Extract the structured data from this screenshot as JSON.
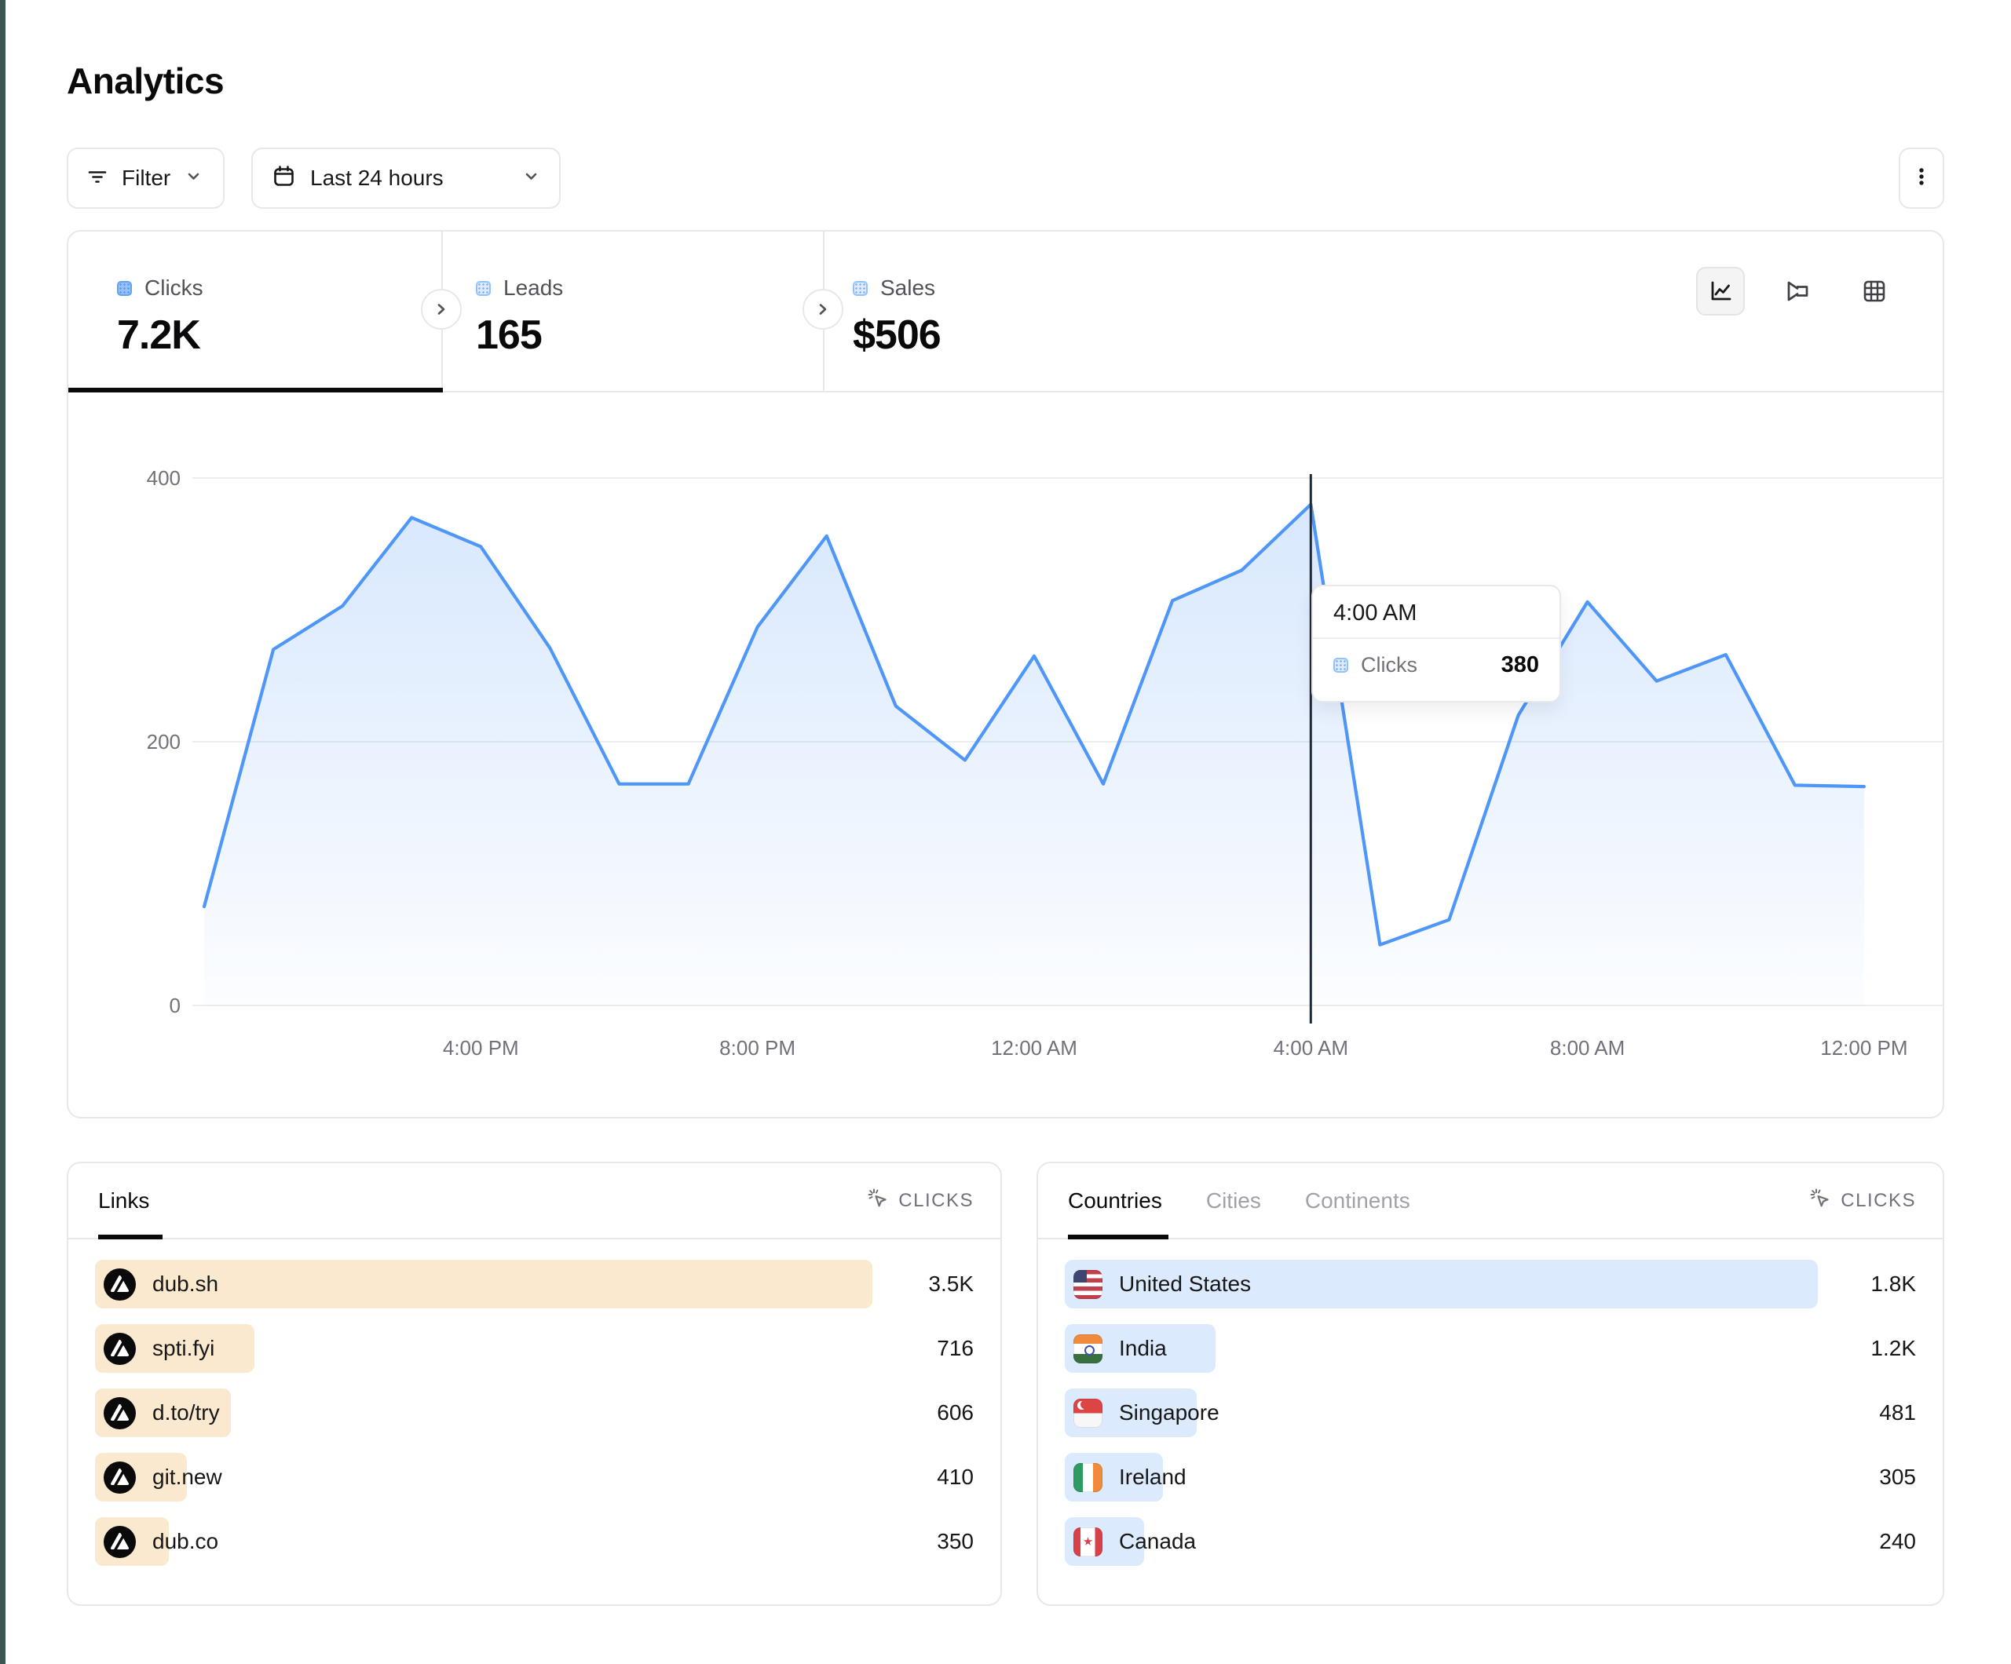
{
  "page": {
    "title": "Analytics"
  },
  "toolbar": {
    "filter_label": "Filter",
    "date_range_label": "Last 24 hours"
  },
  "metrics": [
    {
      "label": "Clicks",
      "value": "7.2K",
      "active": true
    },
    {
      "label": "Leads",
      "value": "165",
      "active": false
    },
    {
      "label": "Sales",
      "value": "$506",
      "active": false
    }
  ],
  "chart_data": {
    "type": "area",
    "x": [
      "12:00 PM",
      "1:00 PM",
      "2:00 PM",
      "3:00 PM",
      "4:00 PM",
      "5:00 PM",
      "6:00 PM",
      "7:00 PM",
      "8:00 PM",
      "9:00 PM",
      "10:00 PM",
      "11:00 PM",
      "12:00 AM",
      "1:00 AM",
      "2:00 AM",
      "3:00 AM",
      "4:00 AM",
      "5:00 AM",
      "6:00 AM",
      "7:00 AM",
      "8:00 AM",
      "9:00 AM",
      "10:00 AM",
      "11:00 AM",
      "12:00 PM"
    ],
    "series": [
      {
        "name": "Clicks",
        "values": [
          75,
          270,
          303,
          370,
          348,
          271,
          168,
          168,
          287,
          356,
          227,
          186,
          265,
          168,
          307,
          330,
          380,
          46,
          65,
          220,
          306,
          246,
          266,
          167,
          166
        ]
      }
    ],
    "x_tick_labels": [
      "4:00 PM",
      "8:00 PM",
      "12:00 AM",
      "4:00 AM",
      "8:00 AM",
      "12:00 PM"
    ],
    "x_tick_indices": [
      4,
      8,
      12,
      16,
      20,
      24
    ],
    "y_ticks": [
      0,
      200,
      400
    ],
    "ylim": [
      0,
      400
    ],
    "grid": "horizontal",
    "legend_position": "none",
    "line_color": "#4e96f7",
    "hover": {
      "index": 16,
      "label": "4:00 AM",
      "series": "Clicks",
      "value": 380
    }
  },
  "tooltip": {
    "title": "4:00 AM",
    "series_label": "Clicks",
    "value": "380"
  },
  "links_panel": {
    "tab_label": "Links",
    "metric_header": "CLICKS",
    "bar_color": "#fbe9cf",
    "rows": [
      {
        "label": "dub.sh",
        "value": "3.5K",
        "bar_pct": 100
      },
      {
        "label": "spti.fyi",
        "value": "716",
        "bar_pct": 20.5
      },
      {
        "label": "d.to/try",
        "value": "606",
        "bar_pct": 17.5
      },
      {
        "label": "git.new",
        "value": "410",
        "bar_pct": 11.8
      },
      {
        "label": "dub.co",
        "value": "350",
        "bar_pct": 9.5
      }
    ]
  },
  "countries_panel": {
    "tabs": [
      "Countries",
      "Cities",
      "Continents"
    ],
    "active_tab": "Countries",
    "metric_header": "CLICKS",
    "bar_color": "#dceafd",
    "rows": [
      {
        "label": "United States",
        "value": "1.8K",
        "bar_pct": 100,
        "flag": "flag flag-us"
      },
      {
        "label": "India",
        "value": "1.2K",
        "bar_pct": 20,
        "flag": "flag flag-in"
      },
      {
        "label": "Singapore",
        "value": "481",
        "bar_pct": 17.5,
        "flag": "flag flag-sg"
      },
      {
        "label": "Ireland",
        "value": "305",
        "bar_pct": 13,
        "flag": "flag flag-ie"
      },
      {
        "label": "Canada",
        "value": "240",
        "bar_pct": 10.5,
        "flag": "flag flag-ca"
      }
    ]
  },
  "colors": {
    "accent_blue": "#4e96f7",
    "crosshair": "#1f2937",
    "links_bar": "#fbe9cf",
    "countries_bar": "#dceafd",
    "active_tab_underline": "#0a0a0a"
  }
}
